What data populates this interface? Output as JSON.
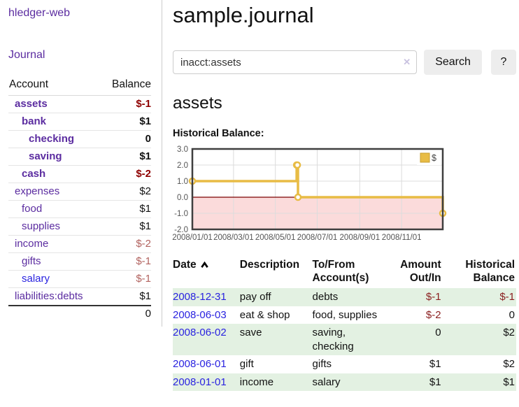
{
  "colors": {
    "link_purple": "#5b2ca0",
    "link_blue": "#2a23e0",
    "negative_strong": "#8e0000",
    "negative": "#8b2020",
    "negative_soft": "#b2635f",
    "row_stripe_green": "#e3f1e2",
    "button_bg": "#ededed"
  },
  "sidebar": {
    "brand": "hledger-web",
    "journal_link": "Journal",
    "accounts_table": {
      "headers": {
        "account": "Account",
        "balance": "Balance"
      },
      "rows": [
        {
          "name": "assets",
          "balance": "$-1",
          "depth": 0,
          "bold": true,
          "link": "purple",
          "tone": "neg-strong"
        },
        {
          "name": "bank",
          "balance": "$1",
          "depth": 1,
          "bold": true,
          "link": "purple",
          "tone": "pos"
        },
        {
          "name": "checking",
          "balance": "0",
          "depth": 2,
          "bold": true,
          "link": "purple",
          "tone": "pos"
        },
        {
          "name": "saving",
          "balance": "$1",
          "depth": 2,
          "bold": true,
          "link": "purple",
          "tone": "pos"
        },
        {
          "name": "cash",
          "balance": "$-2",
          "depth": 1,
          "bold": true,
          "link": "purple",
          "tone": "neg-strong"
        },
        {
          "name": "expenses",
          "balance": "$2",
          "depth": 0,
          "bold": false,
          "link": "purple",
          "tone": "pos"
        },
        {
          "name": "food",
          "balance": "$1",
          "depth": 1,
          "bold": false,
          "link": "purple",
          "tone": "pos"
        },
        {
          "name": "supplies",
          "balance": "$1",
          "depth": 1,
          "bold": false,
          "link": "purple",
          "tone": "pos"
        },
        {
          "name": "income",
          "balance": "$-2",
          "depth": 0,
          "bold": false,
          "link": "purple",
          "tone": "neg-soft"
        },
        {
          "name": "gifts",
          "balance": "$-1",
          "depth": 1,
          "bold": false,
          "link": "purple",
          "tone": "neg-soft"
        },
        {
          "name": "salary",
          "balance": "$-1",
          "depth": 1,
          "bold": false,
          "link": "blue",
          "tone": "neg-soft"
        },
        {
          "name": "liabilities:debts",
          "balance": "$1",
          "depth": 0,
          "bold": false,
          "link": "purple",
          "tone": "pos"
        }
      ],
      "total": "0"
    }
  },
  "main": {
    "title": "sample.journal",
    "search": {
      "value": "inacct:assets",
      "clear_icon": "✕",
      "search_label": "Search",
      "help_label": "?"
    },
    "account_heading": "assets",
    "register_table": {
      "headers": {
        "date": "Date",
        "description": "Description",
        "accounts": "To/From Account(s)",
        "amount": "Amount Out/In",
        "balance": "Historical Balance"
      },
      "rows": [
        {
          "date": "2008-12-31",
          "description": "pay off",
          "accounts": "debts",
          "amount": "$-1",
          "amount_negative": true,
          "balance": "$-1",
          "balance_negative": true
        },
        {
          "date": "2008-06-03",
          "description": "eat & shop",
          "accounts": "food, supplies",
          "amount": "$-2",
          "amount_negative": true,
          "balance": "0",
          "balance_negative": false
        },
        {
          "date": "2008-06-02",
          "description": "save",
          "accounts": "saving, checking",
          "amount": "0",
          "amount_negative": false,
          "balance": "$2",
          "balance_negative": false
        },
        {
          "date": "2008-06-01",
          "description": "gift",
          "accounts": "gifts",
          "amount": "$1",
          "amount_negative": false,
          "balance": "$2",
          "balance_negative": false
        },
        {
          "date": "2008-01-01",
          "description": "income",
          "accounts": "salary",
          "amount": "$1",
          "amount_negative": false,
          "balance": "$1",
          "balance_negative": false
        }
      ]
    }
  },
  "chart_data": {
    "type": "line",
    "title": "Historical Balance:",
    "step": true,
    "xlim": [
      "2008-01-01",
      "2008-12-31"
    ],
    "ylim": [
      -2,
      3
    ],
    "yticks": [
      "3.0",
      "2.0",
      "1.0",
      "0.0",
      "-1.0",
      "-2.0"
    ],
    "xticks": [
      "2008/01/01",
      "2008/03/01",
      "2008/05/01",
      "2008/07/01",
      "2008/09/01",
      "2008/11/01"
    ],
    "series": [
      {
        "name": "$",
        "color": "#e8bc45",
        "points": [
          [
            "2008-01-01",
            1
          ],
          [
            "2008-06-01",
            2
          ],
          [
            "2008-06-02",
            2
          ],
          [
            "2008-06-03",
            0
          ],
          [
            "2008-12-31",
            -1
          ]
        ]
      }
    ],
    "legend": {
      "label": "$",
      "position": "top-right"
    },
    "grid": true,
    "negative_region_color": "#fbdbdb",
    "zero_line_color": "#7c0000",
    "gridline_color": "#dcdcdc",
    "border_color": "#3f3f3f",
    "axis_text_color": "#545454"
  }
}
